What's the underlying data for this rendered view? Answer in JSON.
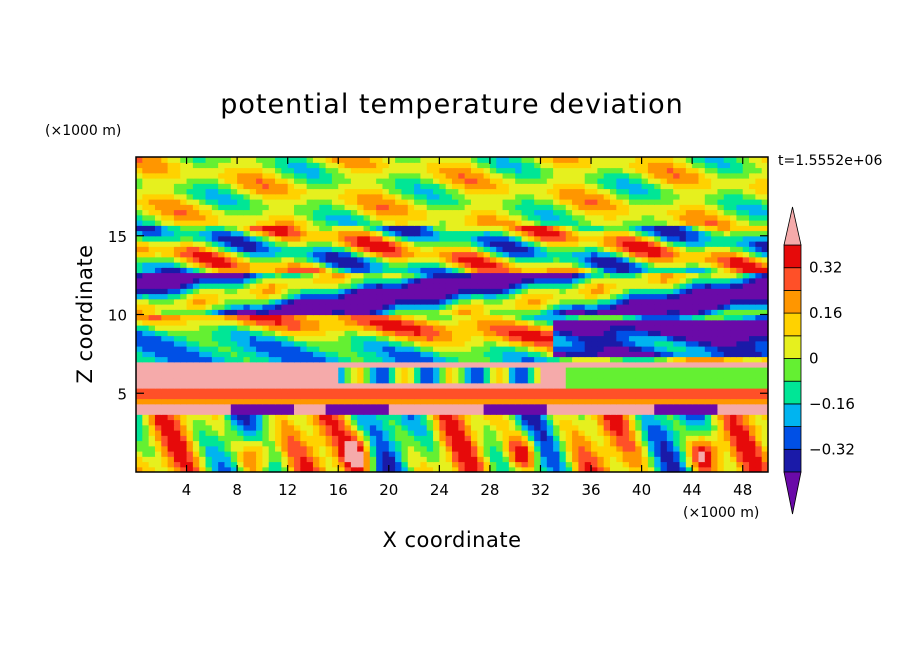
{
  "chart_data": {
    "type": "heatmap",
    "title": "potential temperature deviation",
    "xlabel": "X coordinate",
    "ylabel": "Z coordinate",
    "x_unit": "(×1000 m)",
    "y_unit": "(×1000 m)",
    "time_label": "t=1.5552e+06",
    "xlim": [
      0,
      50
    ],
    "ylim": [
      0,
      20
    ],
    "x_ticks": [
      4,
      8,
      12,
      16,
      20,
      24,
      28,
      32,
      36,
      40,
      44,
      48
    ],
    "y_ticks": [
      5,
      10,
      15
    ],
    "colorbar": {
      "levels": [
        -0.4,
        -0.32,
        -0.24,
        -0.16,
        -0.08,
        0,
        0.08,
        0.16,
        0.24,
        0.32,
        0.4
      ],
      "labeled_levels": [
        0.32,
        0.16,
        0,
        -0.16,
        -0.32
      ],
      "tick_labels": [
        "0.32",
        "0.16",
        "0",
        "−0.16",
        "−0.32"
      ],
      "extend": "both",
      "colors": [
        "#6a0aa8",
        "#1a1aa8",
        "#0050e6",
        "#00b4f0",
        "#00e696",
        "#64f032",
        "#e6f01e",
        "#ffd200",
        "#ff9600",
        "#ff5028",
        "#e60a0a",
        "#f5aaaa"
      ]
    }
  }
}
